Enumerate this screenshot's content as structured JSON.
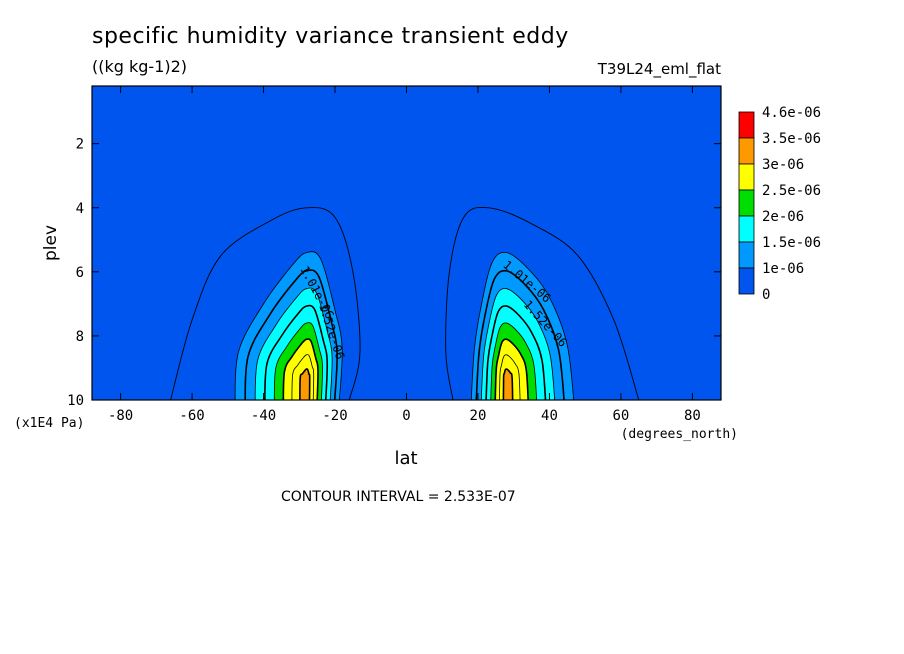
{
  "title": "specific humidity variance transient eddy",
  "units": "((kg kg-1)2)",
  "run_label": "T39L24_eml_flat",
  "contour_interval_text": "CONTOUR INTERVAL = 2.533E-07",
  "chart_data": {
    "type": "contour",
    "xlabel": "lat",
    "ylabel": "plev",
    "x_units": "(degrees_north)",
    "y_units": "(x1E4 Pa)",
    "xlim": [
      -88,
      88
    ],
    "ylim": [
      0.2,
      10
    ],
    "x_ticks": [
      -80,
      -60,
      -40,
      -20,
      0,
      20,
      40,
      60,
      80
    ],
    "y_ticks": [
      2,
      4,
      6,
      8,
      10
    ],
    "contour_labels": [
      "1.01e-06",
      "1.52e-06"
    ],
    "colorbar": {
      "labels": [
        "4.6e-06",
        "3.5e-06",
        "3e-06",
        "2.5e-06",
        "2e-06",
        "1.5e-06",
        "1e-06",
        "0"
      ],
      "colors": [
        "#ff0000",
        "#ff9900",
        "#ffff00",
        "#00dd00",
        "#00ffff",
        "#0099ff",
        "#0055ee"
      ]
    },
    "background_color": "#0055ee",
    "lobes": [
      {
        "name": "southern",
        "peak_lat": -28,
        "peak_plev": 9.4,
        "outer_contour": [
          [
            -66,
            10
          ],
          [
            -60,
            7.5
          ],
          [
            -52,
            5.5
          ],
          [
            -38,
            4.4
          ],
          [
            -28,
            4.0
          ],
          [
            -20,
            4.3
          ],
          [
            -15,
            6
          ],
          [
            -13,
            8.5
          ],
          [
            -16,
            10
          ]
        ],
        "core": [
          [
            -48,
            10
          ],
          [
            -47,
            8.5
          ],
          [
            -40,
            7.0
          ],
          [
            -32,
            5.8
          ],
          [
            -28,
            5.4
          ],
          [
            -24,
            5.6
          ],
          [
            -20,
            7.2
          ],
          [
            -18,
            8.4
          ],
          [
            -19,
            10
          ]
        ]
      },
      {
        "name": "northern",
        "peak_lat": 28,
        "peak_plev": 9.4,
        "outer_contour": [
          [
            13,
            10
          ],
          [
            11,
            8.5
          ],
          [
            12,
            6
          ],
          [
            16,
            4.3
          ],
          [
            23,
            4.0
          ],
          [
            35,
            4.5
          ],
          [
            48,
            5.5
          ],
          [
            58,
            7.5
          ],
          [
            65,
            10
          ]
        ],
        "core": [
          [
            18,
            10
          ],
          [
            19,
            8.4
          ],
          [
            21,
            7.0
          ],
          [
            24,
            5.7
          ],
          [
            28,
            5.4
          ],
          [
            34,
            5.9
          ],
          [
            40,
            6.8
          ],
          [
            45,
            8.3
          ],
          [
            47,
            10
          ]
        ]
      }
    ]
  }
}
